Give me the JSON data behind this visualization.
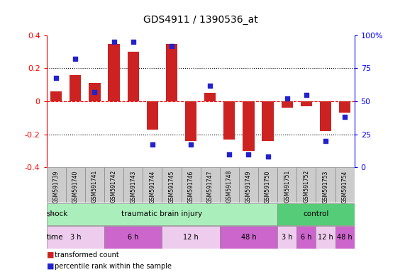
{
  "title": "GDS4911 / 1390536_at",
  "samples": [
    "GSM591739",
    "GSM591740",
    "GSM591741",
    "GSM591742",
    "GSM591743",
    "GSM591744",
    "GSM591745",
    "GSM591746",
    "GSM591747",
    "GSM591748",
    "GSM591749",
    "GSM591750",
    "GSM591751",
    "GSM591752",
    "GSM591753",
    "GSM591754"
  ],
  "bar_values": [
    0.06,
    0.16,
    0.11,
    0.35,
    0.3,
    -0.17,
    0.35,
    -0.24,
    0.05,
    -0.23,
    -0.3,
    -0.24,
    -0.04,
    -0.03,
    -0.18,
    -0.07
  ],
  "dot_values": [
    68,
    82,
    57,
    95,
    95,
    17,
    92,
    17,
    62,
    10,
    10,
    8,
    52,
    55,
    20,
    38
  ],
  "bar_color": "#cc2222",
  "dot_color": "#2222cc",
  "ylim_left": [
    -0.4,
    0.4
  ],
  "ylim_right": [
    0,
    100
  ],
  "yticks_left": [
    -0.4,
    -0.2,
    0.0,
    0.2,
    0.4
  ],
  "yticks_right": [
    0,
    25,
    50,
    75,
    100
  ],
  "ytick_labels_right": [
    "0",
    "25",
    "50",
    "75",
    "100%"
  ],
  "shock_groups": [
    {
      "label": "traumatic brain injury",
      "start": 0,
      "end": 11,
      "color": "#aaeebb"
    },
    {
      "label": "control",
      "start": 12,
      "end": 15,
      "color": "#55cc77"
    }
  ],
  "time_groups": [
    {
      "label": "3 h",
      "start": 0,
      "end": 2,
      "color": "#eeccee"
    },
    {
      "label": "6 h",
      "start": 3,
      "end": 5,
      "color": "#cc66cc"
    },
    {
      "label": "12 h",
      "start": 6,
      "end": 8,
      "color": "#eeccee"
    },
    {
      "label": "48 h",
      "start": 9,
      "end": 11,
      "color": "#cc66cc"
    },
    {
      "label": "3 h",
      "start": 12,
      "end": 12,
      "color": "#eeccee"
    },
    {
      "label": "6 h",
      "start": 13,
      "end": 13,
      "color": "#cc66cc"
    },
    {
      "label": "12 h",
      "start": 14,
      "end": 14,
      "color": "#eeccee"
    },
    {
      "label": "48 h",
      "start": 15,
      "end": 15,
      "color": "#cc66cc"
    }
  ],
  "legend_bar_label": "transformed count",
  "legend_dot_label": "percentile rank within the sample",
  "shock_label": "shock",
  "time_label": "time",
  "background_color": "#ffffff",
  "sample_box_color": "#cccccc",
  "sample_box_edge": "#888888"
}
